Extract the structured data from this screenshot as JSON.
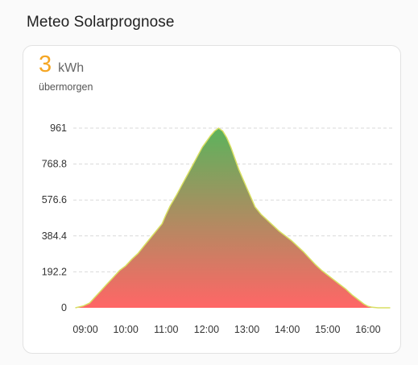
{
  "section_title": "Meteo Solarprognose",
  "card": {
    "value": "3",
    "unit": "kWh",
    "subtitle": "übermorgen"
  },
  "colors": {
    "value": "#f5a623",
    "gradient_top": "#5cb35c",
    "gradient_bottom": "#ff6666",
    "line": "#d8df62",
    "grid": "#d9d9d9"
  },
  "chart_data": {
    "type": "area",
    "ylim": [
      0,
      961
    ],
    "yticks": [
      "961",
      "768.8",
      "576.6",
      "384.4",
      "192.2",
      "0"
    ],
    "ytick_values": [
      961,
      768.8,
      576.6,
      384.4,
      192.2,
      0
    ],
    "xticks": [
      "09:00",
      "10:00",
      "11:00",
      "12:00",
      "13:00",
      "14:00",
      "15:00",
      "16:00"
    ],
    "xlim": [
      8.7,
      16.6
    ],
    "grid": "horizontal dashed",
    "x": [
      8.75,
      8.95,
      9.1,
      9.25,
      9.4,
      9.55,
      9.7,
      9.85,
      10.0,
      10.15,
      10.3,
      10.45,
      10.6,
      10.75,
      10.9,
      11.0,
      11.1,
      11.25,
      11.4,
      11.55,
      11.7,
      11.8,
      11.9,
      12.0,
      12.1,
      12.2,
      12.3,
      12.4,
      12.5,
      12.6,
      12.7,
      12.8,
      12.9,
      13.0,
      13.1,
      13.2,
      13.35,
      13.5,
      13.65,
      13.8,
      13.95,
      14.1,
      14.25,
      14.4,
      14.55,
      14.7,
      14.85,
      15.0,
      15.15,
      15.3,
      15.45,
      15.6,
      15.75,
      15.9,
      16.0,
      16.1,
      16.25,
      16.4,
      16.55
    ],
    "values": [
      0,
      10,
      25,
      60,
      95,
      130,
      165,
      200,
      225,
      260,
      290,
      330,
      370,
      410,
      450,
      500,
      545,
      600,
      660,
      720,
      780,
      820,
      860,
      890,
      920,
      945,
      961,
      945,
      910,
      860,
      800,
      740,
      690,
      640,
      590,
      540,
      500,
      470,
      440,
      410,
      385,
      360,
      330,
      300,
      265,
      230,
      200,
      175,
      150,
      125,
      100,
      70,
      45,
      20,
      8,
      3,
      0,
      0,
      0
    ]
  }
}
